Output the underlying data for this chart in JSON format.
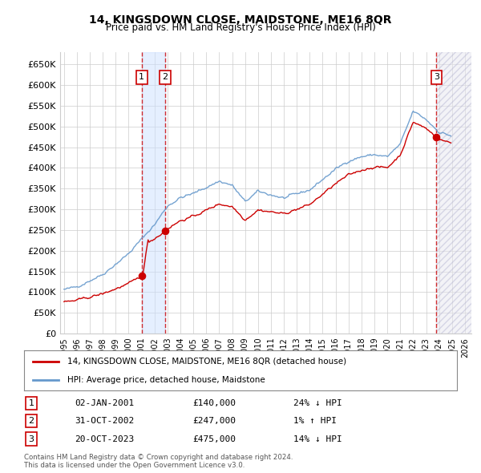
{
  "title": "14, KINGSDOWN CLOSE, MAIDSTONE, ME16 8QR",
  "subtitle": "Price paid vs. HM Land Registry's House Price Index (HPI)",
  "footer1": "Contains HM Land Registry data © Crown copyright and database right 2024.",
  "footer2": "This data is licensed under the Open Government Licence v3.0.",
  "legend_line1": "14, KINGSDOWN CLOSE, MAIDSTONE, ME16 8QR (detached house)",
  "legend_line2": "HPI: Average price, detached house, Maidstone",
  "transactions": [
    {
      "num": 1,
      "date": "02-JAN-2001",
      "date_val": 2001.01,
      "price": 140000,
      "pct": "24%",
      "dir": "↓"
    },
    {
      "num": 2,
      "date": "31-OCT-2002",
      "date_val": 2002.83,
      "price": 247000,
      "pct": "1%",
      "dir": "↑"
    },
    {
      "num": 3,
      "date": "20-OCT-2023",
      "date_val": 2023.8,
      "price": 475000,
      "pct": "14%",
      "dir": "↓"
    }
  ],
  "hpi_color": "#6699cc",
  "price_color": "#cc0000",
  "marker_color": "#cc0000",
  "shade_color": "#cce0ff",
  "ylim": [
    0,
    680000
  ],
  "yticks": [
    0,
    50000,
    100000,
    150000,
    200000,
    250000,
    300000,
    350000,
    400000,
    450000,
    500000,
    550000,
    600000,
    650000
  ],
  "xlim_start": 1994.7,
  "xlim_end": 2026.5,
  "xticks": [
    1995,
    1996,
    1997,
    1998,
    1999,
    2000,
    2001,
    2002,
    2003,
    2004,
    2005,
    2006,
    2007,
    2008,
    2009,
    2010,
    2011,
    2012,
    2013,
    2014,
    2015,
    2016,
    2017,
    2018,
    2019,
    2020,
    2021,
    2022,
    2023,
    2024,
    2025,
    2026
  ]
}
